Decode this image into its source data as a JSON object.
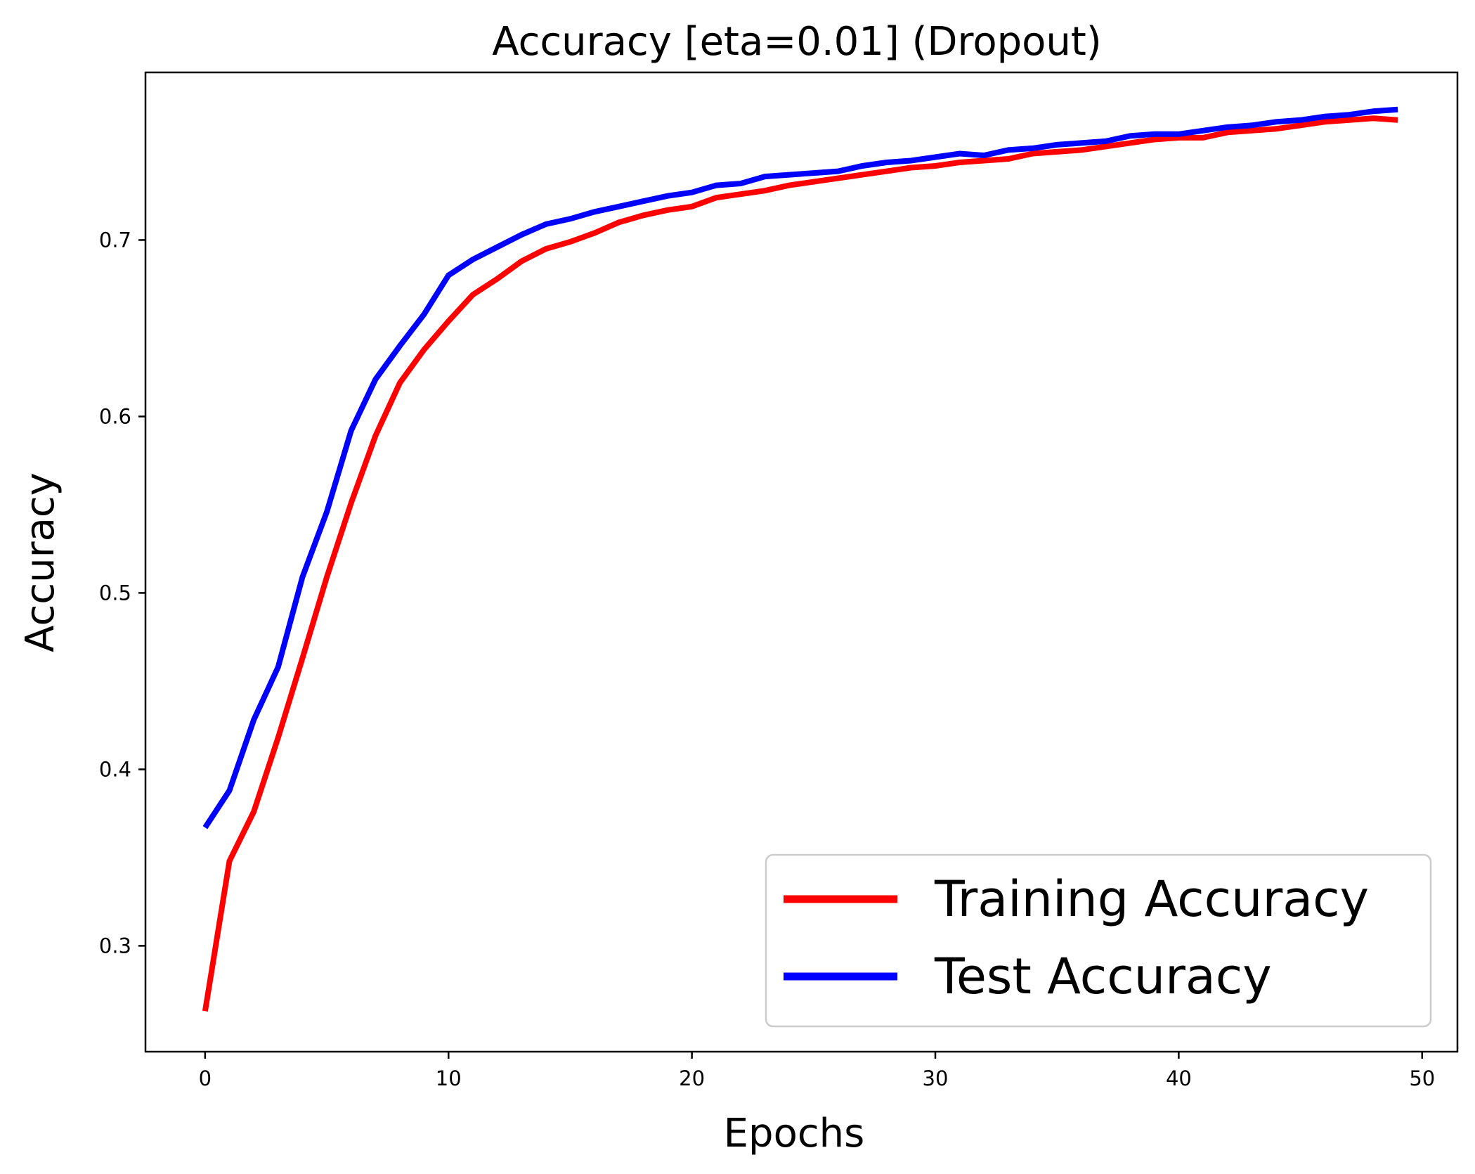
{
  "chart_data": {
    "type": "line",
    "title": "Accuracy [eta=0.01] (Dropout)",
    "xlabel": "Epochs",
    "ylabel": "Accuracy",
    "xlim": [
      -2.45,
      51.45
    ],
    "ylim": [
      0.24,
      0.795
    ],
    "xticks": [
      0,
      10,
      20,
      30,
      40,
      50
    ],
    "xtick_labels": [
      "0",
      "10",
      "20",
      "30",
      "40",
      "50"
    ],
    "yticks": [
      0.3,
      0.4,
      0.5,
      0.6,
      0.7
    ],
    "ytick_labels": [
      "0.3",
      "0.4",
      "0.5",
      "0.6",
      "0.7"
    ],
    "grid": false,
    "legend_position": "bottom-right",
    "x": [
      0,
      1,
      2,
      3,
      4,
      5,
      6,
      7,
      8,
      9,
      10,
      11,
      12,
      13,
      14,
      15,
      16,
      17,
      18,
      19,
      20,
      21,
      22,
      23,
      24,
      25,
      26,
      27,
      28,
      29,
      30,
      31,
      32,
      33,
      34,
      35,
      36,
      37,
      38,
      39,
      40,
      41,
      42,
      43,
      44,
      45,
      46,
      47,
      48,
      49
    ],
    "series": [
      {
        "name": "Training Accuracy",
        "color": "#ff0000",
        "values": [
          0.263,
          0.348,
          0.376,
          0.418,
          0.463,
          0.509,
          0.551,
          0.589,
          0.619,
          0.638,
          0.654,
          0.669,
          0.678,
          0.688,
          0.695,
          0.699,
          0.704,
          0.71,
          0.714,
          0.717,
          0.719,
          0.724,
          0.726,
          0.728,
          0.731,
          0.733,
          0.735,
          0.737,
          0.739,
          0.741,
          0.742,
          0.744,
          0.745,
          0.746,
          0.749,
          0.75,
          0.751,
          0.753,
          0.755,
          0.757,
          0.758,
          0.758,
          0.761,
          0.762,
          0.763,
          0.765,
          0.767,
          0.768,
          0.769,
          0.768
        ]
      },
      {
        "name": "Test Accuracy",
        "color": "#0000ff",
        "values": [
          0.367,
          0.388,
          0.428,
          0.458,
          0.509,
          0.546,
          0.592,
          0.621,
          0.64,
          0.658,
          0.68,
          0.689,
          0.696,
          0.703,
          0.709,
          0.712,
          0.716,
          0.719,
          0.722,
          0.725,
          0.727,
          0.731,
          0.732,
          0.736,
          0.737,
          0.738,
          0.739,
          0.742,
          0.744,
          0.745,
          0.747,
          0.749,
          0.748,
          0.751,
          0.752,
          0.754,
          0.755,
          0.756,
          0.759,
          0.76,
          0.76,
          0.762,
          0.764,
          0.765,
          0.767,
          0.768,
          0.77,
          0.771,
          0.773,
          0.774
        ]
      }
    ]
  }
}
